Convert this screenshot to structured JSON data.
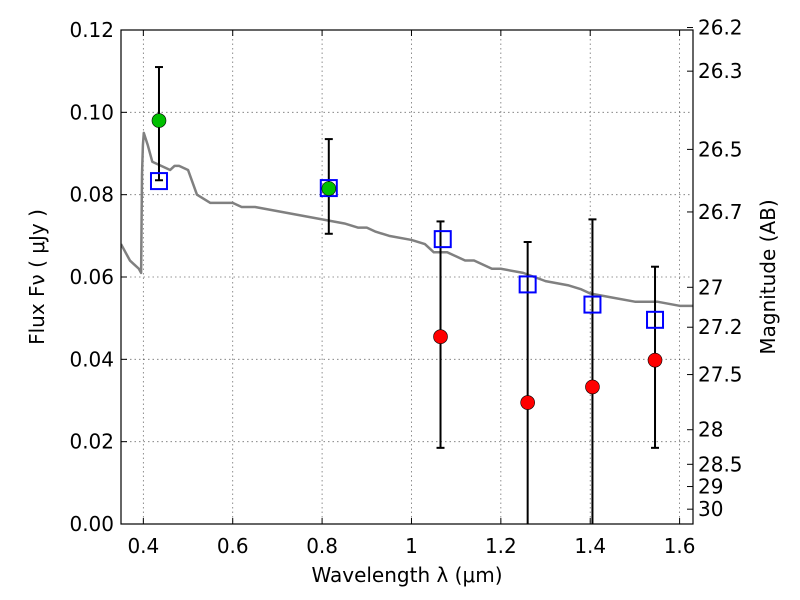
{
  "chart_data": {
    "type": "scatter",
    "xlabel": "Wavelength  λ (μm)",
    "ylabel": "Flux  Fν  ( μJy )",
    "ylabel_right": "Magnitude (AB)",
    "xlim": [
      0.35,
      1.63
    ],
    "ylim": [
      0.0,
      0.12
    ],
    "grid": true,
    "x_ticks": [
      0.4,
      0.6,
      0.8,
      1.0,
      1.2,
      1.4,
      1.6
    ],
    "x_tick_labels": [
      "0.4",
      "0.6",
      "0.8",
      "1",
      "1.2",
      "1.4",
      "1.6"
    ],
    "y_ticks": [
      0.0,
      0.02,
      0.04,
      0.06,
      0.08,
      0.1,
      0.12
    ],
    "y_tick_labels": [
      "0.00",
      "0.02",
      "0.04",
      "0.06",
      "0.08",
      "0.10",
      "0.12"
    ],
    "right_ticks": [
      {
        "flux": 0.1206,
        "label": "26.2"
      },
      {
        "flux": 0.11,
        "label": "26.3"
      },
      {
        "flux": 0.091,
        "label": "26.5"
      },
      {
        "flux": 0.0758,
        "label": "26.7"
      },
      {
        "flux": 0.0575,
        "label": "27"
      },
      {
        "flux": 0.0478,
        "label": "27.2"
      },
      {
        "flux": 0.0363,
        "label": "27.5"
      },
      {
        "flux": 0.0229,
        "label": "28"
      },
      {
        "flux": 0.0145,
        "label": "28.5"
      },
      {
        "flux": 0.0091,
        "label": "29"
      },
      {
        "flux": 0.0036,
        "label": "30"
      }
    ],
    "series": [
      {
        "kind": "line",
        "color": "#808080",
        "x": [
          0.35,
          0.37,
          0.38,
          0.39,
          0.395,
          0.397,
          0.399,
          0.401,
          0.41,
          0.42,
          0.44,
          0.46,
          0.47,
          0.48,
          0.5,
          0.52,
          0.55,
          0.6,
          0.62,
          0.65,
          0.7,
          0.75,
          0.8,
          0.85,
          0.88,
          0.9,
          0.92,
          0.95,
          1.0,
          1.03,
          1.05,
          1.08,
          1.1,
          1.12,
          1.14,
          1.16,
          1.18,
          1.2,
          1.25,
          1.3,
          1.35,
          1.38,
          1.4,
          1.45,
          1.5,
          1.55,
          1.6,
          1.63
        ],
        "y": [
          0.068,
          0.064,
          0.063,
          0.062,
          0.061,
          0.085,
          0.092,
          0.095,
          0.092,
          0.088,
          0.087,
          0.086,
          0.087,
          0.087,
          0.086,
          0.08,
          0.078,
          0.078,
          0.077,
          0.077,
          0.076,
          0.075,
          0.074,
          0.073,
          0.072,
          0.072,
          0.071,
          0.07,
          0.069,
          0.068,
          0.066,
          0.066,
          0.065,
          0.064,
          0.064,
          0.063,
          0.062,
          0.062,
          0.061,
          0.059,
          0.058,
          0.057,
          0.056,
          0.055,
          0.054,
          0.054,
          0.053,
          0.053
        ]
      },
      {
        "kind": "error_bars",
        "color": "#000000",
        "points": [
          {
            "x": 0.435,
            "low": 0.0835,
            "high": 0.111
          },
          {
            "x": 0.815,
            "low": 0.0705,
            "high": 0.0935
          },
          {
            "x": 1.065,
            "low": 0.0185,
            "high": 0.0735
          },
          {
            "x": 1.26,
            "low": 0.0,
            "high": 0.0685
          },
          {
            "x": 1.405,
            "low": 0.0,
            "high": 0.074
          },
          {
            "x": 1.545,
            "low": 0.0185,
            "high": 0.0625
          }
        ]
      },
      {
        "kind": "open_squares",
        "color": "#0000ff",
        "x": [
          0.435,
          0.815,
          1.07,
          1.26,
          1.405,
          1.545
        ],
        "y": [
          0.0833,
          0.0816,
          0.0692,
          0.0582,
          0.0533,
          0.0496
        ]
      },
      {
        "kind": "filled_circles",
        "color": "#00c000",
        "x": [
          0.435,
          0.815
        ],
        "y": [
          0.098,
          0.0815
        ]
      },
      {
        "kind": "filled_circles",
        "color": "#ff0000",
        "x": [
          1.065,
          1.26,
          1.405,
          1.545
        ],
        "y": [
          0.0455,
          0.0295,
          0.0333,
          0.0398
        ]
      }
    ]
  }
}
